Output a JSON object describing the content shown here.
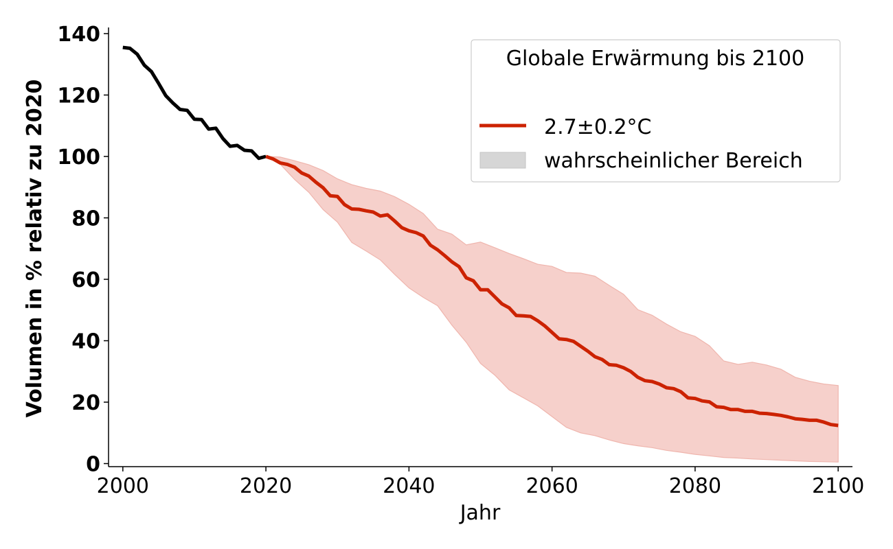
{
  "chart_data": {
    "type": "line",
    "title": "",
    "xlabel": "Jahr",
    "ylabel": "Volumen in % relativ zu 2020",
    "xlim": [
      1998,
      2102
    ],
    "ylim": [
      -1,
      142
    ],
    "x_ticks": [
      2000,
      2020,
      2040,
      2060,
      2080,
      2100
    ],
    "y_ticks": [
      0,
      20,
      40,
      60,
      80,
      100,
      120,
      140
    ],
    "grid": false,
    "legend": {
      "title": "Globale Erwärmung bis 2100",
      "placement": "top-right",
      "entries": [
        {
          "label": "2.7±0.2°C",
          "kind": "line",
          "color": "#cc2200"
        },
        {
          "label": "wahrscheinlicher Bereich",
          "kind": "patch",
          "color": "#d6d6d6"
        }
      ]
    },
    "colors": {
      "historical": "#000000",
      "projection": "#cc2200",
      "band_fill": "#f6d0cb",
      "band_edge": "#efb5ad"
    },
    "series": [
      {
        "id": "historical",
        "x": [
          2000,
          2001,
          2002,
          2003,
          2004,
          2005,
          2006,
          2007,
          2008,
          2009,
          2010,
          2011,
          2012,
          2013,
          2014,
          2015,
          2016,
          2017,
          2018,
          2019,
          2020
        ],
        "values": [
          135.5,
          135.2,
          133.3,
          129.7,
          127.6,
          123.8,
          119.8,
          117.4,
          115.3,
          115.0,
          112.1,
          112.0,
          108.9,
          109.2,
          105.8,
          103.3,
          103.6,
          102.0,
          101.8,
          99.4,
          100.0
        ]
      },
      {
        "id": "projection",
        "x": [
          2020,
          2021,
          2022,
          2023,
          2024,
          2025,
          2026,
          2027,
          2028,
          2029,
          2030,
          2031,
          2032,
          2033,
          2034,
          2035,
          2036,
          2037,
          2038,
          2039,
          2040,
          2041,
          2042,
          2043,
          2044,
          2045,
          2046,
          2047,
          2048,
          2049,
          2050,
          2051,
          2052,
          2053,
          2054,
          2055,
          2056,
          2057,
          2058,
          2059,
          2060,
          2061,
          2062,
          2063,
          2064,
          2065,
          2066,
          2067,
          2068,
          2069,
          2070,
          2071,
          2072,
          2073,
          2074,
          2075,
          2076,
          2077,
          2078,
          2079,
          2080,
          2081,
          2082,
          2083,
          2084,
          2085,
          2086,
          2087,
          2088,
          2089,
          2090,
          2091,
          2092,
          2093,
          2094,
          2095,
          2096,
          2097,
          2098,
          2099,
          2100
        ],
        "values": [
          100.0,
          99.2,
          97.9,
          97.4,
          96.5,
          94.6,
          93.6,
          91.6,
          89.8,
          87.2,
          87.0,
          84.3,
          82.9,
          82.8,
          82.3,
          81.9,
          80.6,
          81.0,
          79.0,
          76.8,
          75.8,
          75.2,
          74.1,
          71.1,
          69.6,
          67.7,
          65.7,
          64.1,
          60.5,
          59.5,
          56.6,
          56.6,
          54.3,
          52.0,
          50.7,
          48.2,
          48.1,
          47.9,
          46.5,
          44.8,
          42.7,
          40.6,
          40.4,
          39.8,
          38.2,
          36.6,
          34.8,
          33.9,
          32.2,
          32.0,
          31.2,
          30.0,
          28.1,
          27.0,
          26.7,
          25.9,
          24.7,
          24.4,
          23.4,
          21.4,
          21.2,
          20.4,
          20.1,
          18.5,
          18.3,
          17.6,
          17.6,
          17.0,
          17.0,
          16.4,
          16.3,
          16.0,
          15.7,
          15.2,
          14.6,
          14.4,
          14.1,
          14.1,
          13.5,
          12.7,
          12.4
        ]
      }
    ],
    "band": {
      "x": [
        2020,
        2022,
        2024,
        2026,
        2028,
        2030,
        2032,
        2034,
        2036,
        2038,
        2040,
        2042,
        2044,
        2046,
        2048,
        2050,
        2052,
        2054,
        2056,
        2058,
        2060,
        2062,
        2064,
        2066,
        2068,
        2070,
        2072,
        2074,
        2076,
        2078,
        2080,
        2082,
        2084,
        2086,
        2088,
        2090,
        2092,
        2094,
        2096,
        2098,
        2100
      ],
      "lower": [
        100.0,
        97.5,
        92.5,
        88.3,
        82.7,
        78.6,
        72.0,
        69.2,
        66.3,
        61.6,
        57.2,
        54.1,
        51.4,
        45.1,
        39.5,
        32.6,
        28.8,
        24.0,
        21.4,
        18.8,
        15.3,
        11.8,
        10.0,
        9.1,
        7.7,
        6.5,
        5.8,
        5.2,
        4.3,
        3.7,
        3.0,
        2.5,
        2.0,
        1.8,
        1.5,
        1.3,
        1.1,
        0.9,
        0.7,
        0.6,
        0.5
      ],
      "upper": [
        100.0,
        99.8,
        98.6,
        97.3,
        95.4,
        92.7,
        90.8,
        89.6,
        88.7,
        86.9,
        84.4,
        81.4,
        76.3,
        74.7,
        71.2,
        72.1,
        70.3,
        68.4,
        66.7,
        64.9,
        64.2,
        62.2,
        62.0,
        61.0,
        58.0,
        55.1,
        50.1,
        48.3,
        45.4,
        42.9,
        41.4,
        38.4,
        33.4,
        32.3,
        33.0,
        32.1,
        30.7,
        28.1,
        26.8,
        25.9,
        25.4
      ]
    }
  }
}
